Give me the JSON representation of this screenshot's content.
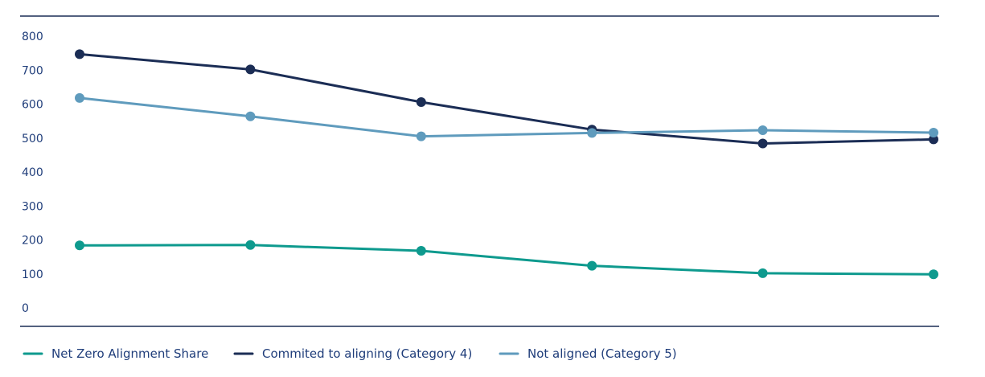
{
  "chart_data": {
    "type": "line",
    "title": "",
    "xlabel": "",
    "ylabel": "",
    "categories": [
      "",
      "",
      "",
      "",
      "",
      ""
    ],
    "yticks": [
      0,
      100,
      200,
      300,
      400,
      500,
      600,
      700,
      800
    ],
    "ylim": [
      0,
      800
    ],
    "grid": false,
    "legend_position": "bottom-left",
    "series": [
      {
        "name": "Net Zero Alignment Share",
        "color": "#0e9a8e",
        "values": [
          184,
          185,
          168,
          124,
          102,
          99
        ]
      },
      {
        "name": "Commited to aligning (Category 4)",
        "color": "#1b2d55",
        "values": [
          747,
          702,
          606,
          525,
          484,
          496
        ]
      },
      {
        "name": "Not aligned (Category 5)",
        "color": "#5f9bbd",
        "values": [
          618,
          564,
          505,
          515,
          523,
          516
        ]
      }
    ]
  }
}
